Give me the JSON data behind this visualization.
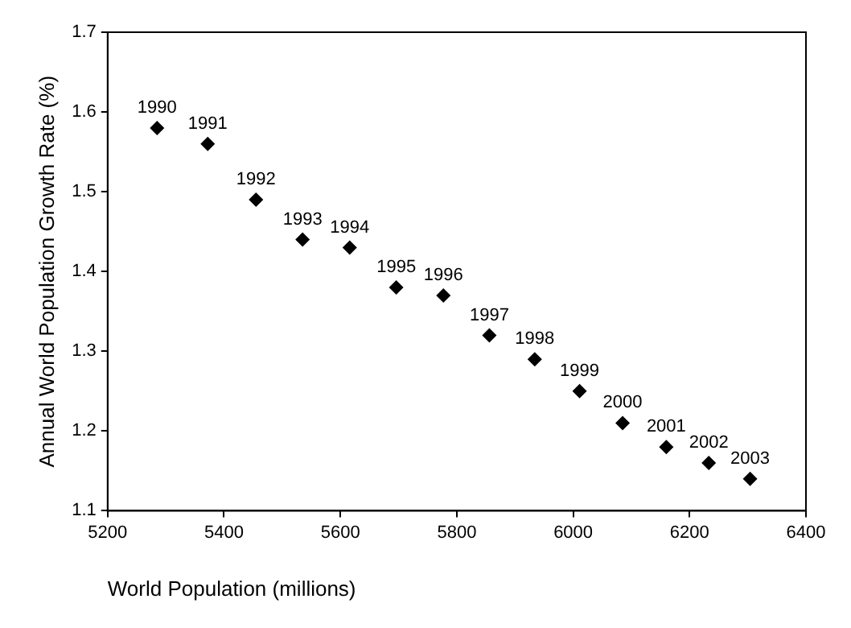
{
  "chart_data": {
    "type": "scatter",
    "xlabel": "World Population (millions)",
    "ylabel": "Annual World Population Growth Rate (%)",
    "x": [
      5285,
      5372,
      5455,
      5535,
      5616,
      5696,
      5777,
      5856,
      5934,
      6011,
      6085,
      6160,
      6233,
      6304
    ],
    "series": [
      {
        "color": "#000000",
        "values": [
          1.58,
          1.56,
          1.49,
          1.44,
          1.43,
          1.38,
          1.37,
          1.32,
          1.29,
          1.25,
          1.21,
          1.18,
          1.16,
          1.14
        ]
      }
    ],
    "annotations": [
      {
        "text": "1990",
        "x": 5285,
        "y": 1.58
      },
      {
        "text": "1991",
        "x": 5372,
        "y": 1.56
      },
      {
        "text": "1992",
        "x": 5455,
        "y": 1.49
      },
      {
        "text": "1993",
        "x": 5535,
        "y": 1.44
      },
      {
        "text": "1994",
        "x": 5616,
        "y": 1.43
      },
      {
        "text": "1995",
        "x": 5696,
        "y": 1.38
      },
      {
        "text": "1996",
        "x": 5777,
        "y": 1.37
      },
      {
        "text": "1997",
        "x": 5856,
        "y": 1.32
      },
      {
        "text": "1998",
        "x": 5934,
        "y": 1.29
      },
      {
        "text": "1999",
        "x": 6011,
        "y": 1.25
      },
      {
        "text": "2000",
        "x": 6085,
        "y": 1.21
      },
      {
        "text": "2001",
        "x": 6160,
        "y": 1.18
      },
      {
        "text": "2002",
        "x": 6233,
        "y": 1.16
      },
      {
        "text": "2003",
        "x": 6304,
        "y": 1.14
      }
    ],
    "xlim": [
      5200,
      6400
    ],
    "xticks": [
      5200,
      5400,
      5600,
      5800,
      6000,
      6200,
      6400
    ],
    "ylim": [
      1.1,
      1.7
    ],
    "yticks": [
      1.1,
      1.2,
      1.3,
      1.4,
      1.5,
      1.6,
      1.7
    ],
    "grid": false,
    "legend": false,
    "marker": "diamond"
  }
}
